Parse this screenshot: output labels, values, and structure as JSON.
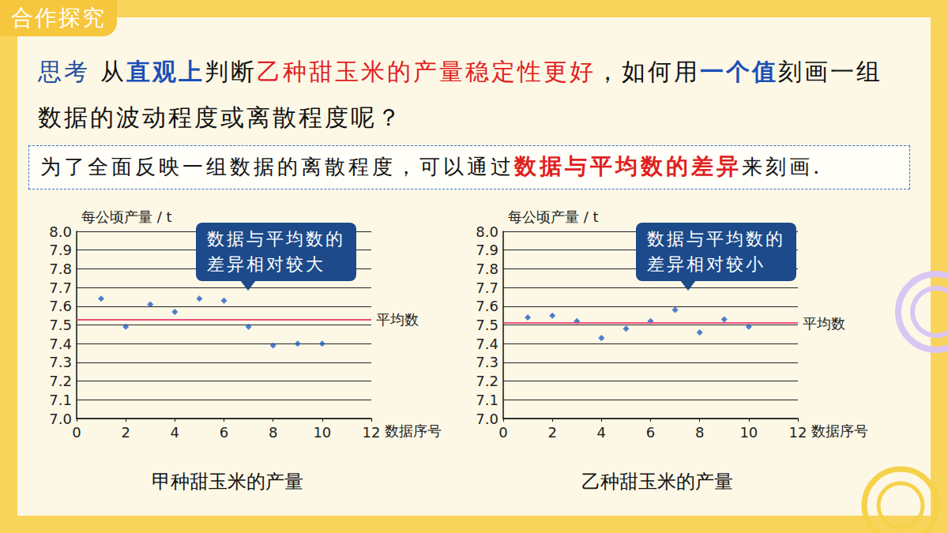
{
  "header": {
    "tab": "合作探究"
  },
  "question": {
    "segments": [
      {
        "text": "思考",
        "style": "label"
      },
      {
        "text": " 从",
        "style": "plain"
      },
      {
        "text": "直观上",
        "style": "emphasis"
      },
      {
        "text": "判断",
        "style": "plain"
      },
      {
        "text": "乙种甜玉米的产量稳定性更好",
        "style": "highlight"
      },
      {
        "text": "，如何用",
        "style": "plain"
      },
      {
        "text": "一个值",
        "style": "emphasis"
      },
      {
        "text": "刻画一组数据的波动程度或离散程度呢？",
        "style": "plain"
      }
    ]
  },
  "note": {
    "segments": [
      {
        "text": "为了全面反映一组数据的离散程度，可以通过",
        "style": "plain"
      },
      {
        "text": "数据与平均数的差异",
        "style": "highlight"
      },
      {
        "text": "来刻画.",
        "style": "plain"
      }
    ]
  },
  "chart_data": [
    {
      "type": "scatter",
      "caption": "甲种甜玉米的产量",
      "y_label": "每公顷产量 / t",
      "x_label": "数据序号",
      "x": [
        1,
        2,
        3,
        4,
        5,
        6,
        7,
        8,
        9,
        10
      ],
      "values": [
        7.64,
        7.49,
        7.61,
        7.57,
        7.64,
        7.63,
        7.49,
        7.39,
        7.4,
        7.4
      ],
      "color": "#1f5fc4",
      "marker": "diamond",
      "mean": 7.53,
      "mean_label": "平均数",
      "callout": [
        "数据与平均数的",
        "差异相对较大"
      ],
      "xlim": [
        0,
        12
      ],
      "xticks": [
        0,
        2,
        4,
        6,
        8,
        10,
        12
      ],
      "ylim": [
        7,
        8
      ],
      "yticks": [
        {
          "value": 7,
          "label": "7.0"
        },
        7.1,
        7.2,
        7.3,
        7.4,
        7.5,
        7.6,
        7.7,
        7.8,
        7.9,
        {
          "value": 8,
          "label": "8.0"
        }
      ],
      "grid": true
    },
    {
      "type": "scatter",
      "caption": "乙种甜玉米的产量",
      "y_label": "每公顷产量 / t",
      "x_label": "数据序号",
      "x": [
        1,
        2,
        3,
        4,
        5,
        6,
        7,
        8,
        9,
        10
      ],
      "values": [
        7.54,
        7.55,
        7.52,
        7.43,
        7.48,
        7.52,
        7.58,
        7.46,
        7.53,
        7.49
      ],
      "color": "#1f5fc4",
      "marker": "diamond",
      "mean": 7.51,
      "mean_label": "平均数",
      "callout": [
        "数据与平均数的",
        "差异相对较小"
      ],
      "xlim": [
        0,
        12
      ],
      "xticks": [
        0,
        2,
        4,
        6,
        8,
        10,
        12
      ],
      "ylim": [
        7,
        8
      ],
      "yticks": [
        {
          "value": 7,
          "label": "7.0"
        },
        7.1,
        7.2,
        7.3,
        7.4,
        7.5,
        7.6,
        7.7,
        7.8,
        7.9,
        {
          "value": 8,
          "label": "8.0"
        }
      ],
      "grid": true
    }
  ]
}
